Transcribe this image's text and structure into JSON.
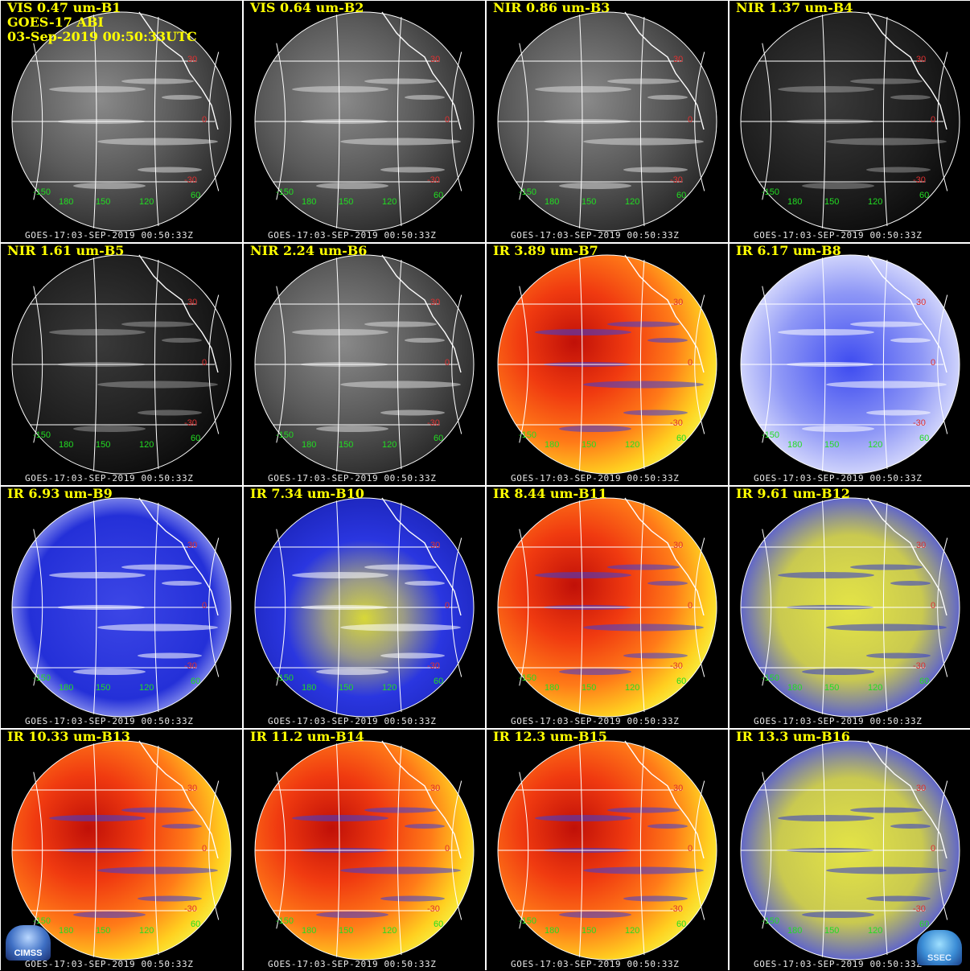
{
  "header": {
    "satellite": "GOES-17 ABI",
    "datetime": "03-Sep-2019 00:50:33UTC"
  },
  "stamp": "GOES-17:03-SEP-2019 00:50:33Z",
  "latitude_labels": [
    "30",
    "0",
    "-30"
  ],
  "longitude_labels": [
    "-150",
    "180",
    "150",
    "120",
    "60"
  ],
  "logos": {
    "left": "CIMSS",
    "right": "SSEC"
  },
  "colors": {
    "title": "#ffff00",
    "grid_lines": "#ffffff",
    "lat_label": "#e03030",
    "lon_label": "#22dd22"
  },
  "panels": [
    {
      "label": "VIS 0.47 um-B1",
      "palette": "gray"
    },
    {
      "label": "VIS 0.64 um-B2",
      "palette": "gray"
    },
    {
      "label": "NIR 0.86 um-B3",
      "palette": "gray"
    },
    {
      "label": "NIR 1.37 um-B4",
      "palette": "dark"
    },
    {
      "label": "NIR 1.61 um-B5",
      "palette": "dark"
    },
    {
      "label": "NIR 2.24 um-B6",
      "palette": "gray"
    },
    {
      "label": "IR 3.89 um-B7",
      "palette": "warm"
    },
    {
      "label": "IR 6.17 um-B8",
      "palette": "wv-light"
    },
    {
      "label": "IR 6.93 um-B9",
      "palette": "wv"
    },
    {
      "label": "IR 7.34 um-B10",
      "palette": "wv-yellow"
    },
    {
      "label": "IR 8.44 um-B11",
      "palette": "warm"
    },
    {
      "label": "IR 9.61 um-B12",
      "palette": "olive"
    },
    {
      "label": "IR 10.33 um-B13",
      "palette": "warm"
    },
    {
      "label": "IR 11.2 um-B14",
      "palette": "warm"
    },
    {
      "label": "IR 12.3 um-B15",
      "palette": "warm"
    },
    {
      "label": "IR 13.3 um-B16",
      "palette": "olive"
    }
  ]
}
